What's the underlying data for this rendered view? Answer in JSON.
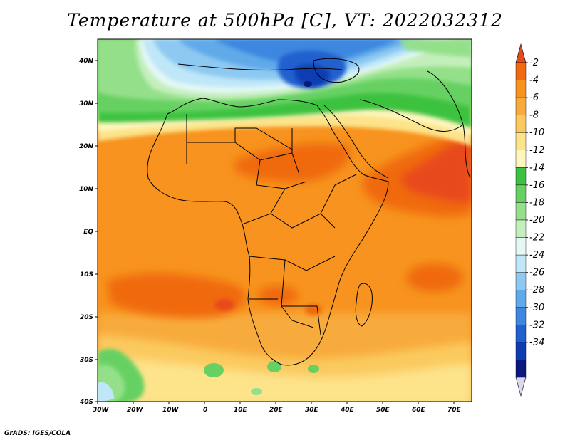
{
  "title": "Temperature at 500hPa [C], VT: 2022032312",
  "credit": "GrADS: IGES/COLA",
  "x_ticks": [
    "30W",
    "20W",
    "10W",
    "0",
    "10E",
    "20E",
    "30E",
    "40E",
    "50E",
    "60E",
    "70E"
  ],
  "y_ticks": [
    "40N",
    "30N",
    "20N",
    "10N",
    "EQ",
    "10S",
    "20S",
    "30S",
    "40S"
  ],
  "colorbar": {
    "labels": [
      "-2",
      "-4",
      "-6",
      "-8",
      "-10",
      "-12",
      "-14",
      "-16",
      "-18",
      "-20",
      "-22",
      "-24",
      "-26",
      "-28",
      "-30",
      "-32",
      "-34"
    ],
    "colors": [
      "#e8481a",
      "#f06a10",
      "#f7931e",
      "#f8ab3c",
      "#fbca5e",
      "#fde38a",
      "#fff6be",
      "#3cc240",
      "#66d162",
      "#94e08a",
      "#c4efbc",
      "#e4f8f6",
      "#bfe7f8",
      "#8ec9f2",
      "#61aae9",
      "#3e87e0",
      "#2060cf",
      "#0e3cb3",
      "#091a7c",
      "#dcd8f4"
    ]
  },
  "map": {
    "x_range": [
      "30W",
      "75E"
    ],
    "y_range": [
      "40S",
      "45N"
    ],
    "colors": {
      "ocean_default": "#f7931e",
      "coastline": "#000000"
    }
  }
}
